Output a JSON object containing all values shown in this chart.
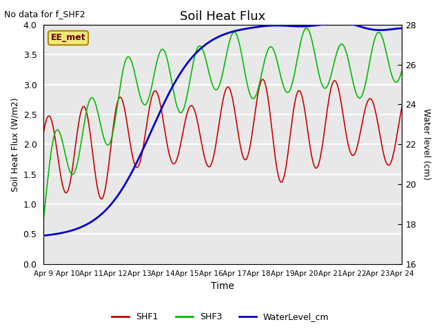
{
  "title": "Soil Heat Flux",
  "top_left_text": "No data for f_SHF2",
  "annotation_box": "EE_met",
  "ylabel_left": "Soil Heat Flux (W/m2)",
  "ylabel_right": "Water level (cm)",
  "xlabel": "Time",
  "ylim_left": [
    0.0,
    4.0
  ],
  "ylim_right": [
    16,
    28
  ],
  "x_tick_labels": [
    "Apr 9",
    "Apr 10",
    "Apr 11",
    "Apr 12",
    "Apr 13",
    "Apr 14",
    "Apr 15",
    "Apr 16",
    "Apr 17",
    "Apr 18",
    "Apr 19",
    "Apr 20",
    "Apr 21",
    "Apr 22",
    "Apr 23",
    "Apr 24"
  ],
  "background_color": "#e8e8e8",
  "shf1_color": "#cc0000",
  "shf3_color": "#00bb00",
  "water_color": "#0000cc",
  "legend_entries": [
    "SHF1",
    "SHF3",
    "WaterLevel_cm"
  ],
  "left_yticks": [
    0.0,
    0.5,
    1.0,
    1.5,
    2.0,
    2.5,
    3.0,
    3.5,
    4.0
  ],
  "right_yticks": [
    16,
    18,
    20,
    22,
    24,
    26,
    28
  ]
}
